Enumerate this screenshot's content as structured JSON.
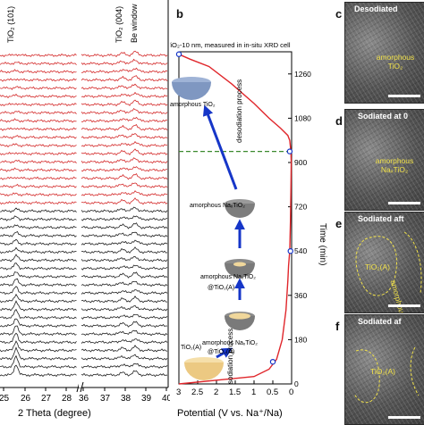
{
  "panel_labels": {
    "b": "b",
    "c": "c",
    "d": "d",
    "e": "e",
    "f": "f"
  },
  "panel_a": {
    "xlabel": "2 Theta (degree)",
    "x_ticks_left": [
      "25",
      "26",
      "27",
      "28"
    ],
    "x_ticks_right": [
      "36",
      "37",
      "38",
      "39",
      "40"
    ],
    "peak_labels": {
      "p1": "TiO₂ (101)",
      "p2": "TiO₂ (004)",
      "p3": "Be window"
    },
    "scan_count": 40,
    "red_scans": 19
  },
  "panel_b": {
    "title": "TiO₂-10 nm, measured in in-situ XRD cell",
    "xlabel": "Potential (V vs. Na⁺/Na)",
    "ylabel": "Time (min)",
    "x_ticks": [
      "3",
      "2.5",
      "2",
      "1.5",
      "1",
      "0.5",
      "0"
    ],
    "y_ticks": [
      "0",
      "180",
      "360",
      "540",
      "720",
      "900",
      "1080",
      "1260"
    ],
    "process_labels": {
      "desodiation": "desodiation process",
      "sodiation": "sodiation process"
    },
    "state_labels": {
      "s1": "TiO₂(A)",
      "s2a": "amorphous  NaₓTiO₂",
      "s2b": "@TiO₂(A)",
      "s3a": "amorphous NaₓTiO₂",
      "s3b": "@TiO₂(A)",
      "s4": "amorphous NaₓTiO₂",
      "s5": "amorphous  TiO₂"
    },
    "colors": {
      "curve": "#e0262b",
      "arrow": "#1636c8",
      "dashed": "#3c8a2e",
      "marker": "#1636c8"
    }
  },
  "chart_data": {
    "type": "line",
    "xlabel": "Potential (V vs. Na⁺/Na)",
    "ylabel": "Time (min)",
    "xlim": [
      3,
      0
    ],
    "ylim": [
      0,
      1350
    ],
    "series": [
      {
        "x": [
          3.0,
          1.0,
          0.6,
          0.4,
          0.25,
          0.15,
          0.1,
          0.08,
          0.05,
          0.03,
          0.02,
          0.01,
          0.02,
          0.05,
          0.1,
          0.3,
          0.6,
          1.0,
          1.6,
          2.2,
          2.7,
          3.0
        ],
        "y": [
          0,
          30,
          60,
          100,
          180,
          300,
          420,
          480,
          540,
          660,
          780,
          900,
          945,
          990,
          1010,
          1040,
          1080,
          1140,
          1220,
          1290,
          1320,
          1340
        ]
      }
    ],
    "markers": [
      {
        "x": 3.0,
        "y": 1340
      },
      {
        "x": 0.05,
        "y": 945
      },
      {
        "x": 0.03,
        "y": 540
      },
      {
        "x": 0.5,
        "y": 90
      }
    ],
    "reference_line_y": 945
  },
  "tem_panels": {
    "c": {
      "title": "Desodiated",
      "phase": "amorphous TiO₂"
    },
    "d": {
      "title": "Sodiated at 0",
      "phase": "amorphous NaₓTiO₂"
    },
    "e": {
      "title": "Sodiated aft",
      "phase1": "TiO₂(A)",
      "phase2": "amorphous"
    },
    "f": {
      "title": "Sodiated af",
      "phase1": "TiO₂(A)"
    }
  }
}
